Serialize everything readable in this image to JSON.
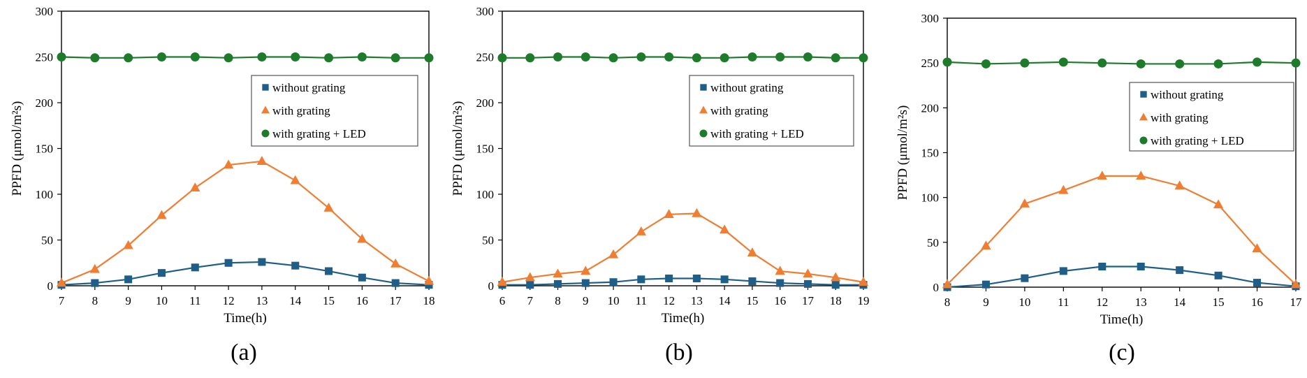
{
  "colors": {
    "without": "#1f5f87",
    "with": "#ef7d32",
    "led": "#1d7b2b",
    "axis": "#000000",
    "legend_border": "#555555"
  },
  "chart_data": [
    {
      "type": "line",
      "caption": "(a)",
      "xlabel": "Time(h)",
      "ylabel": "PPFD (μmol/m²s)",
      "ylim": [
        0,
        300
      ],
      "yticks": [
        "0",
        "50",
        "100",
        "150",
        "200",
        "250",
        "300"
      ],
      "x": [
        7,
        8,
        9,
        10,
        11,
        12,
        13,
        14,
        15,
        16,
        17,
        18
      ],
      "legend_position": "right-upper",
      "series": [
        {
          "name": "without grating",
          "marker": "square",
          "color_key": "without",
          "values": [
            1,
            3,
            7,
            14,
            20,
            25,
            26,
            22,
            16,
            9,
            3,
            1
          ]
        },
        {
          "name": "with grating",
          "marker": "triangle",
          "color_key": "with",
          "values": [
            3,
            18,
            44,
            77,
            107,
            132,
            136,
            115,
            85,
            51,
            24,
            5
          ]
        },
        {
          "name": "with grating + LED",
          "marker": "circle",
          "color_key": "led",
          "values": [
            250,
            249,
            249,
            250,
            250,
            249,
            250,
            250,
            249,
            250,
            249,
            249
          ]
        }
      ]
    },
    {
      "type": "line",
      "caption": "(b)",
      "xlabel": "Time(h)",
      "ylabel": "PPFD (μmol/m²s)",
      "ylim": [
        0,
        300
      ],
      "yticks": [
        "0",
        "50",
        "100",
        "150",
        "200",
        "250",
        "300"
      ],
      "x": [
        6,
        7,
        8,
        9,
        10,
        11,
        12,
        13,
        14,
        15,
        16,
        17,
        18,
        19
      ],
      "legend_position": "right-upper",
      "series": [
        {
          "name": "without grating",
          "marker": "square",
          "color_key": "without",
          "values": [
            1,
            1,
            2,
            3,
            4,
            7,
            8,
            8,
            7,
            5,
            3,
            2,
            1,
            1
          ]
        },
        {
          "name": "with grating",
          "marker": "triangle",
          "color_key": "with",
          "values": [
            4,
            9,
            13,
            16,
            34,
            59,
            78,
            79,
            61,
            36,
            16,
            13,
            9,
            4
          ]
        },
        {
          "name": "with grating + LED",
          "marker": "circle",
          "color_key": "led",
          "values": [
            249,
            249,
            250,
            250,
            249,
            250,
            250,
            249,
            249,
            250,
            250,
            250,
            249,
            249
          ]
        }
      ]
    },
    {
      "type": "line",
      "caption": "(c)",
      "xlabel": "Time(h)",
      "ylabel": "PPFD (μmol/m²s)",
      "ylim": [
        0,
        300
      ],
      "yticks": [
        "0",
        "50",
        "100",
        "150",
        "200",
        "250",
        "300"
      ],
      "x": [
        8,
        9,
        10,
        11,
        12,
        13,
        14,
        15,
        16,
        17
      ],
      "legend_position": "right-upper",
      "series": [
        {
          "name": "without grating",
          "marker": "square",
          "color_key": "without",
          "values": [
            0,
            3,
            10,
            18,
            23,
            23,
            19,
            13,
            5,
            1
          ]
        },
        {
          "name": "with grating",
          "marker": "triangle",
          "color_key": "with",
          "values": [
            3,
            46,
            93,
            108,
            124,
            124,
            113,
            92,
            43,
            3
          ]
        },
        {
          "name": "with grating + LED",
          "marker": "circle",
          "color_key": "led",
          "values": [
            251,
            249,
            250,
            251,
            250,
            249,
            249,
            249,
            251,
            250
          ]
        }
      ]
    }
  ]
}
